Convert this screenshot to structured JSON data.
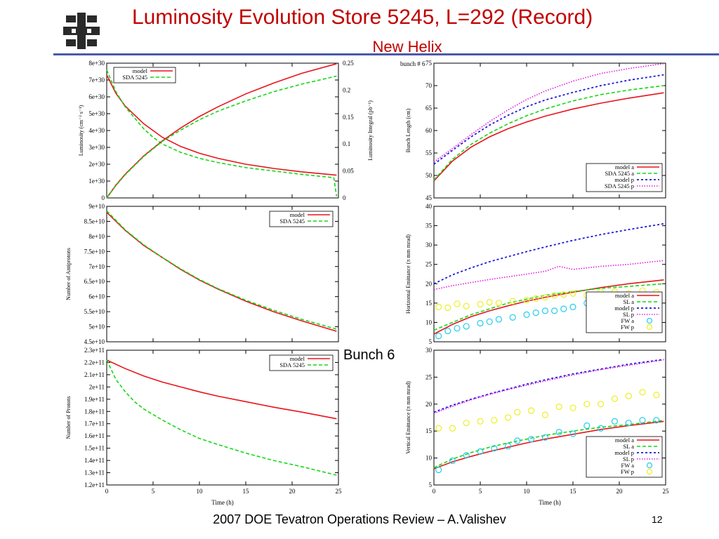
{
  "header": {
    "title": "Luminosity Evolution  Store 5245, L=292 (Record)",
    "subtitle": "New Helix"
  },
  "bunch_label": "Bunch 6",
  "footer": {
    "text": "2007 DOE Tevatron Operations Review – A.Valishev",
    "page": "12"
  },
  "colors": {
    "title": "#c00000",
    "rule": "#4a5aa8",
    "model_a": "#e8141c",
    "sda_a": "#14d814",
    "model_p": "#1a1ad8",
    "sda_p": "#e21ae2",
    "fw_a": "#22ccee",
    "fw_p": "#eeee22"
  },
  "chart_data": [
    {
      "id": "luminosity",
      "type": "line",
      "ylabel": "Luminosity (cm⁻² s⁻¹)",
      "y2label": "Luminosity Integral (pb⁻¹)",
      "ylim": [
        0,
        8e+30
      ],
      "y2lim": [
        0,
        0.25
      ],
      "xlim": [
        0,
        25
      ],
      "yticks": [
        "0",
        "1e+30",
        "2e+30",
        "3e+30",
        "4e+30",
        "5e+30",
        "6e+30",
        "7e+30",
        "8e+30"
      ],
      "y2ticks": [
        "0",
        "0.05",
        "0.1",
        "0.15",
        "0.2",
        "0.25"
      ],
      "legend": [
        "model",
        "SDA 5245"
      ],
      "series": [
        {
          "name": "model",
          "axis": "y",
          "x": [
            0,
            1,
            2,
            4,
            6,
            8,
            10,
            12,
            15,
            18,
            21,
            24.8
          ],
          "values": [
            7.3e+30,
            6.2e+30,
            5.45e+30,
            4.4e+30,
            3.6e+30,
            3.05e+30,
            2.65e+30,
            2.35e+30,
            2e+30,
            1.75e+30,
            1.55e+30,
            1.35e+30
          ]
        },
        {
          "name": "SDA 5245",
          "axis": "y",
          "x": [
            0,
            1,
            2,
            4,
            5,
            6,
            8,
            10,
            12,
            15,
            18,
            21,
            24.5,
            24.8
          ],
          "values": [
            7.6e+30,
            6.3e+30,
            5.4e+30,
            4.1e+30,
            3.6e+30,
            3.2e+30,
            2.7e+30,
            2.35e+30,
            2.1e+30,
            1.8e+30,
            1.6e+30,
            1.4e+30,
            1.2e+30,
            1e+29
          ]
        },
        {
          "name": "model",
          "axis": "y2",
          "x": [
            0,
            1,
            2,
            4,
            6,
            8,
            10,
            12,
            15,
            18,
            21,
            24.8
          ],
          "values": [
            0,
            0.024,
            0.044,
            0.078,
            0.106,
            0.13,
            0.151,
            0.169,
            0.193,
            0.213,
            0.231,
            0.249
          ]
        },
        {
          "name": "SDA 5245",
          "axis": "y2",
          "x": [
            0,
            1,
            2,
            4,
            6,
            8,
            10,
            12,
            15,
            18,
            21,
            24.8
          ],
          "values": [
            0,
            0.023,
            0.043,
            0.077,
            0.105,
            0.126,
            0.145,
            0.161,
            0.18,
            0.197,
            0.211,
            0.226
          ]
        }
      ]
    },
    {
      "id": "antiprotons",
      "type": "line",
      "ylabel": "Number of Antiprotons",
      "ylim": [
        45000000000.0,
        90000000000.0
      ],
      "xlim": [
        0,
        25
      ],
      "yticks": [
        "4.5e+10",
        "5e+10",
        "5.5e+10",
        "6e+10",
        "6.5e+10",
        "7e+10",
        "7.5e+10",
        "8e+10",
        "8.5e+10",
        "9e+10"
      ],
      "legend": [
        "model",
        "SDA 5245"
      ],
      "series": [
        {
          "name": "model",
          "x": [
            0,
            2,
            4,
            6,
            8,
            10,
            12,
            15,
            18,
            21,
            24.8
          ],
          "values": [
            88000000000.0,
            82000000000.0,
            77000000000.0,
            73000000000.0,
            69000000000.0,
            65500000000.0,
            62500000000.0,
            58500000000.0,
            55000000000.0,
            52000000000.0,
            48500000000.0
          ]
        },
        {
          "name": "SDA 5245",
          "x": [
            0,
            2,
            4,
            6,
            8,
            10,
            12,
            15,
            18,
            21,
            24.8
          ],
          "values": [
            88500000000.0,
            82200000000.0,
            77200000000.0,
            73000000000.0,
            69200000000.0,
            65700000000.0,
            62700000000.0,
            58800000000.0,
            55500000000.0,
            52500000000.0,
            49200000000.0
          ]
        }
      ]
    },
    {
      "id": "protons",
      "type": "line",
      "ylabel": "Number of Protons",
      "xlabel": "Time (h)",
      "ylim": [
        120000000000.0,
        230000000000.0
      ],
      "xlim": [
        0,
        25
      ],
      "xticks": [
        "0",
        "5",
        "10",
        "15",
        "20",
        "25"
      ],
      "yticks": [
        "1.2e+11",
        "1.3e+11",
        "1.4e+11",
        "1.5e+11",
        "1.6e+11",
        "1.7e+11",
        "1.8e+11",
        "1.9e+11",
        "2e+11",
        "2.1e+11",
        "2.2e+11",
        "2.3e+11"
      ],
      "legend": [
        "model",
        "SDA 5245"
      ],
      "series": [
        {
          "name": "model",
          "x": [
            0,
            2,
            4,
            6,
            8,
            10,
            12,
            15,
            18,
            21,
            24.8
          ],
          "values": [
            222000000000.0,
            215000000000.0,
            209000000000.0,
            204000000000.0,
            200000000000.0,
            196000000000.0,
            192500000000.0,
            188000000000.0,
            183500000000.0,
            179500000000.0,
            174000000000.0
          ]
        },
        {
          "name": "SDA 5245",
          "x": [
            0,
            1,
            2,
            3,
            4,
            6,
            8,
            10,
            12,
            15,
            18,
            21,
            24.8
          ],
          "values": [
            222000000000.0,
            206000000000.0,
            196000000000.0,
            188000000000.0,
            182000000000.0,
            173000000000.0,
            165000000000.0,
            158000000000.0,
            153000000000.0,
            146000000000.0,
            140000000000.0,
            135000000000.0,
            128000000000.0
          ]
        }
      ]
    },
    {
      "id": "bunch_length",
      "type": "line",
      "annotation": "bunch # 6",
      "ylabel": "Bunch Length (cm)",
      "ylim": [
        45,
        75
      ],
      "xlim": [
        0,
        25
      ],
      "yticks": [
        "45",
        "50",
        "55",
        "60",
        "65",
        "70",
        "75"
      ],
      "legend": [
        "model a",
        "SDA 5245 a",
        "model p",
        "SDA 5245 p"
      ],
      "series": [
        {
          "name": "model a",
          "x": [
            0,
            2,
            4,
            6,
            8,
            10,
            12,
            15,
            18,
            21,
            24.8
          ],
          "values": [
            48.8,
            53.2,
            56.3,
            58.6,
            60.4,
            61.9,
            63.2,
            64.8,
            66.1,
            67.2,
            68.4
          ]
        },
        {
          "name": "SDA 5245 a",
          "x": [
            0,
            2,
            4,
            6,
            8,
            10,
            12,
            15,
            18,
            21,
            24.8
          ],
          "values": [
            49.0,
            53.6,
            56.9,
            59.4,
            61.5,
            63.3,
            64.8,
            66.6,
            68.0,
            69.0,
            70.0
          ]
        },
        {
          "name": "model p",
          "x": [
            0,
            2,
            4,
            6,
            8,
            10,
            12,
            15,
            18,
            21,
            24.8
          ],
          "values": [
            52.5,
            55.6,
            58.6,
            61.2,
            63.4,
            65.3,
            66.8,
            68.5,
            70.0,
            71.2,
            72.4
          ]
        },
        {
          "name": "SDA 5245 p",
          "x": [
            0,
            2,
            4,
            6,
            8,
            10,
            12,
            15,
            18,
            21,
            24.8
          ],
          "values": [
            53.0,
            56.0,
            59.1,
            62.0,
            64.6,
            66.9,
            68.8,
            71.0,
            72.7,
            73.8,
            74.9
          ]
        }
      ]
    },
    {
      "id": "horizontal_emittance",
      "type": "line",
      "ylabel": "Horizontal Emittance (π mm mrad)",
      "ylim": [
        5,
        40
      ],
      "xlim": [
        0,
        25
      ],
      "yticks": [
        "5",
        "10",
        "15",
        "20",
        "25",
        "30",
        "35",
        "40"
      ],
      "legend": [
        "model a",
        "SL a",
        "model p",
        "SL p",
        "FW a",
        "FW p"
      ],
      "series": [
        {
          "name": "model a",
          "x": [
            0,
            2,
            4,
            6,
            8,
            10,
            12,
            15,
            18,
            21,
            24.8
          ],
          "values": [
            7.0,
            9.5,
            11.5,
            13.0,
            14.3,
            15.5,
            16.5,
            17.8,
            19.0,
            20.0,
            21.0
          ]
        },
        {
          "name": "SL a",
          "x": [
            0,
            2,
            4,
            6,
            8,
            10,
            12,
            15,
            18,
            21,
            24.8
          ],
          "values": [
            8.0,
            10.0,
            12.0,
            13.5,
            15.0,
            16.0,
            17.0,
            18.0,
            18.8,
            19.3,
            20.0
          ]
        },
        {
          "name": "model p",
          "x": [
            0,
            2,
            4,
            6,
            8,
            10,
            12,
            15,
            18,
            21,
            24.8
          ],
          "values": [
            20.0,
            22.3,
            24.1,
            25.7,
            27.0,
            28.3,
            29.5,
            31.2,
            32.7,
            34.0,
            35.5
          ]
        },
        {
          "name": "SL p",
          "x": [
            0,
            2,
            4,
            6,
            8,
            10,
            12,
            13.5,
            15,
            18,
            21,
            24.8
          ],
          "values": [
            18.5,
            19.5,
            20.3,
            21.1,
            21.8,
            22.5,
            23.2,
            24.5,
            23.7,
            24.5,
            25.0,
            26.0
          ]
        },
        {
          "name": "FW a",
          "x": [
            0.5,
            1.5,
            2.5,
            3.5,
            5,
            6,
            7,
            8.5,
            10,
            11,
            12,
            13,
            14,
            15,
            16.5,
            18,
            19.5,
            21,
            22.5,
            24
          ],
          "values": [
            6.5,
            7.8,
            8.5,
            9.0,
            9.8,
            10.2,
            10.8,
            11.3,
            12.0,
            12.5,
            13.0,
            13.0,
            13.5,
            14.0,
            15.0,
            14.5,
            15.2,
            15.3,
            15.5,
            16.0
          ]
        },
        {
          "name": "FW p",
          "x": [
            0.5,
            1.5,
            2.5,
            3.5,
            5,
            6,
            7,
            8.5,
            10,
            11,
            12,
            13,
            14,
            15,
            16.5,
            18,
            19.5,
            21,
            22.5,
            24
          ],
          "values": [
            14.0,
            13.8,
            14.8,
            14.2,
            14.7,
            15.2,
            15.0,
            15.5,
            15.8,
            16.2,
            16.5,
            17.0,
            17.2,
            17.5,
            17.0,
            17.8,
            18.0,
            17.5,
            18.2,
            17.8
          ]
        }
      ]
    },
    {
      "id": "vertical_emittance",
      "type": "line",
      "ylabel": "Vertical Emittance (π mm mrad)",
      "xlabel": "Time (h)",
      "ylim": [
        5,
        30
      ],
      "xlim": [
        0,
        25
      ],
      "xticks": [
        "0",
        "5",
        "10",
        "15",
        "20",
        "25"
      ],
      "yticks": [
        "5",
        "10",
        "15",
        "20",
        "25",
        "30"
      ],
      "legend": [
        "model a",
        "SL a",
        "model p",
        "SL p",
        "FW a",
        "FW p"
      ],
      "series": [
        {
          "name": "model a",
          "x": [
            0,
            2,
            4,
            6,
            8,
            10,
            12,
            15,
            18,
            21,
            24.8
          ],
          "values": [
            8.0,
            9.3,
            10.3,
            11.2,
            12.0,
            12.8,
            13.5,
            14.4,
            15.3,
            16.0,
            16.8
          ]
        },
        {
          "name": "SL a",
          "x": [
            0,
            2,
            4,
            6,
            8,
            10,
            12,
            15,
            18,
            21,
            24.8
          ],
          "values": [
            8.2,
            9.8,
            11.0,
            12.0,
            12.8,
            13.5,
            14.2,
            15.0,
            15.7,
            16.2,
            17.0
          ]
        },
        {
          "name": "model p",
          "x": [
            0,
            2,
            4,
            6,
            8,
            10,
            12,
            15,
            18,
            21,
            24.8
          ],
          "values": [
            18.5,
            19.8,
            20.9,
            21.9,
            22.8,
            23.7,
            24.5,
            25.6,
            26.5,
            27.4,
            28.3
          ]
        },
        {
          "name": "SL p",
          "x": [
            0,
            2,
            4,
            6,
            8,
            10,
            12,
            15,
            18,
            21,
            24.8
          ],
          "values": [
            18.3,
            19.6,
            20.8,
            21.8,
            22.7,
            23.5,
            24.3,
            25.4,
            26.4,
            27.2,
            28.2
          ]
        },
        {
          "name": "FW a",
          "x": [
            0.5,
            2,
            3.5,
            5,
            6.5,
            8,
            9,
            10.5,
            12,
            13.5,
            15,
            16.5,
            18,
            19.5,
            21,
            22.5,
            24
          ],
          "values": [
            7.8,
            9.5,
            10.5,
            11.2,
            11.8,
            12.2,
            13.2,
            13.5,
            13.8,
            14.8,
            14.5,
            16.0,
            15.5,
            16.8,
            16.5,
            17.0,
            17.0
          ]
        },
        {
          "name": "FW p",
          "x": [
            0.5,
            2,
            3.5,
            5,
            6.5,
            8,
            9,
            10.5,
            12,
            13.5,
            15,
            16.5,
            18,
            19.5,
            21,
            22.5,
            24
          ],
          "values": [
            15.5,
            15.5,
            16.5,
            16.8,
            17.0,
            17.5,
            18.5,
            18.8,
            18.0,
            19.5,
            19.3,
            20.0,
            20.0,
            21.0,
            21.5,
            22.2,
            21.7
          ]
        }
      ]
    }
  ]
}
